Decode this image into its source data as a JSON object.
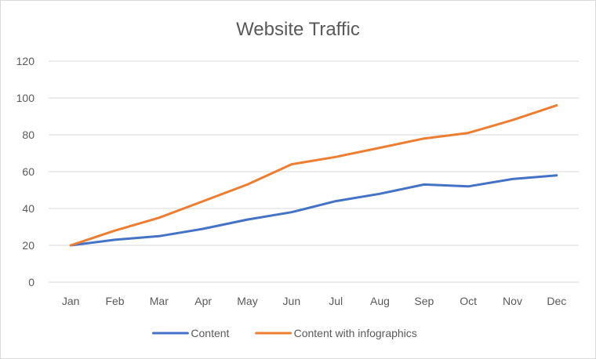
{
  "chart_data": {
    "type": "line",
    "title": "Website Traffic",
    "xlabel": "",
    "ylabel": "",
    "categories": [
      "Jan",
      "Feb",
      "Mar",
      "Apr",
      "May",
      "Jun",
      "Jul",
      "Aug",
      "Sep",
      "Oct",
      "Nov",
      "Dec"
    ],
    "ylim": [
      0,
      120
    ],
    "yticks": [
      "0",
      "20",
      "40",
      "60",
      "80",
      "100",
      "120"
    ],
    "grid": true,
    "legend_position": "bottom",
    "series": [
      {
        "name": "Content",
        "color": "#4472c4",
        "values": [
          20,
          23,
          25,
          29,
          34,
          38,
          44,
          48,
          53,
          52,
          56,
          58
        ]
      },
      {
        "name": "Content with infographics",
        "color": "#ed7d31",
        "values": [
          20,
          28,
          35,
          44,
          53,
          64,
          68,
          73,
          78,
          81,
          88,
          96
        ]
      }
    ]
  }
}
